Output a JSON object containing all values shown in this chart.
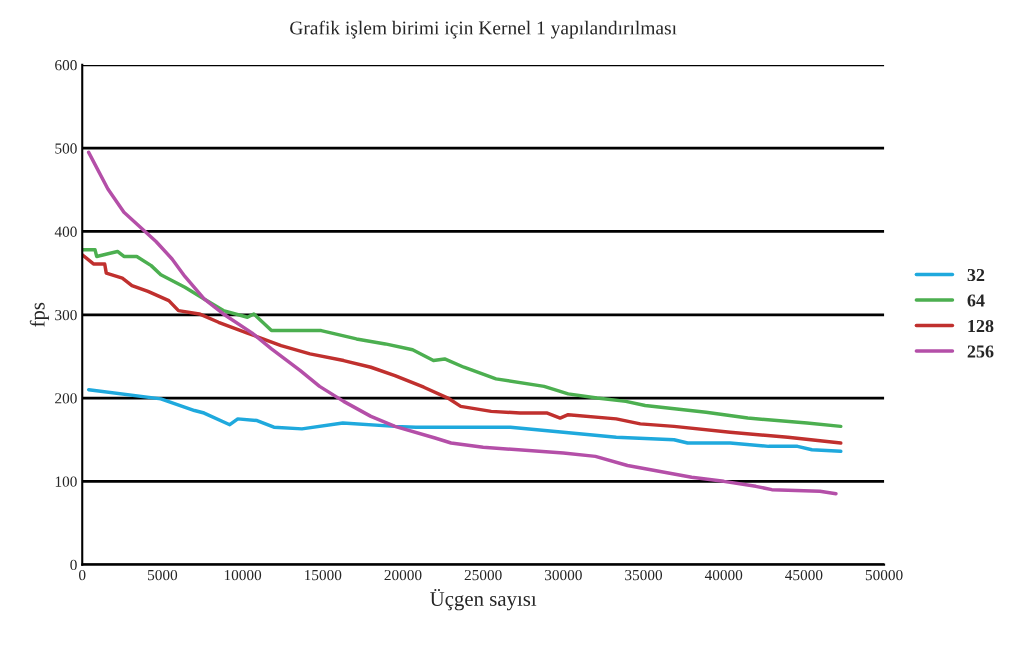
{
  "chart_data": {
    "type": "line",
    "title": "Grafik işlem birimi için Kernel 1 yapılandırılması",
    "xlabel": "Üçgen sayısı",
    "ylabel": "fps",
    "xlim": [
      0,
      50000
    ],
    "xticks": [
      0,
      5000,
      10000,
      15000,
      20000,
      25000,
      30000,
      35000,
      40000,
      45000,
      50000
    ],
    "ylim": [
      0,
      600
    ],
    "yticks": [
      0,
      100,
      200,
      300,
      400,
      500,
      600
    ],
    "grid": "y",
    "legend": "right",
    "marker": "none",
    "line_style": "solid",
    "series": [
      {
        "name": "32",
        "color": "#1fa9dd",
        "x": [
          400,
          4900,
          7000,
          7600,
          9200,
          9700,
          10900,
          11950,
          13700,
          16250,
          19500,
          20800,
          23100,
          26700,
          30000,
          33300,
          36900,
          37750,
          40400,
          42800,
          44600,
          45500,
          47300
        ],
        "values": [
          210,
          199,
          185,
          182,
          168,
          175,
          173,
          165,
          163,
          170,
          166,
          165,
          165,
          165,
          159,
          153,
          150,
          146,
          146,
          142,
          142,
          138,
          136
        ]
      },
      {
        "name": "64",
        "color": "#4caf50",
        "x": [
          0,
          800,
          900,
          2200,
          2600,
          3400,
          4300,
          4900,
          6400,
          7600,
          8800,
          10300,
          10700,
          11800,
          14900,
          17100,
          18900,
          20600,
          21900,
          22600,
          23800,
          25800,
          28800,
          30300,
          32100,
          33900,
          35100,
          38900,
          41500,
          45200,
          47300
        ],
        "values": [
          378,
          378,
          370,
          376,
          370,
          370,
          359,
          348,
          333,
          319,
          305,
          297,
          301,
          281,
          281,
          271,
          265,
          258,
          245,
          247,
          237,
          223,
          214,
          205,
          200,
          196,
          191,
          183,
          176,
          170,
          166
        ]
      },
      {
        "name": "128",
        "color": "#c0302e",
        "x": [
          0,
          700,
          1400,
          1500,
          2500,
          3100,
          4100,
          5400,
          6000,
          7300,
          8500,
          10300,
          12400,
          14200,
          16300,
          18000,
          19500,
          21300,
          22800,
          23600,
          25500,
          27300,
          29000,
          29800,
          30300,
          33300,
          34800,
          36900,
          40400,
          44000,
          47300
        ],
        "values": [
          372,
          361,
          361,
          350,
          344,
          335,
          328,
          317,
          305,
          301,
          291,
          278,
          263,
          253,
          245,
          237,
          227,
          213,
          200,
          190,
          184,
          182,
          182,
          176,
          180,
          175,
          169,
          166,
          159,
          153,
          146
        ]
      },
      {
        "name": "256",
        "color": "#b44fa8",
        "x": [
          400,
          1600,
          2600,
          4600,
          5600,
          6400,
          7600,
          8800,
          10600,
          11800,
          13600,
          14800,
          16300,
          18000,
          19500,
          22000,
          23000,
          25000,
          30000,
          32000,
          34000,
          38000,
          40000,
          42000,
          43000,
          46000,
          47000
        ],
        "values": [
          495,
          451,
          423,
          388,
          367,
          346,
          319,
          301,
          278,
          259,
          233,
          214,
          196,
          178,
          166,
          152,
          146,
          141,
          134,
          130,
          119,
          105,
          100,
          94,
          90,
          88,
          85
        ]
      }
    ]
  }
}
